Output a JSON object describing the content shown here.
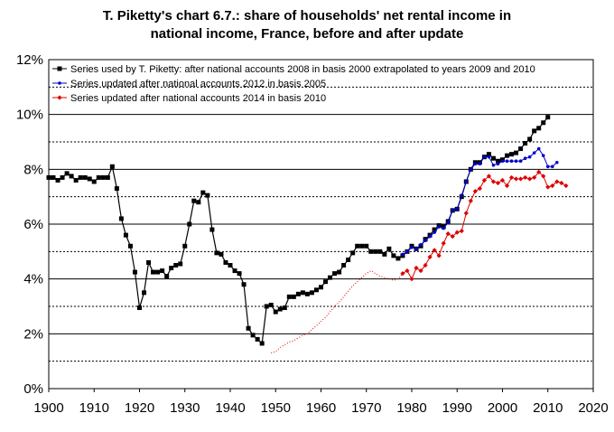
{
  "chart_data": {
    "type": "line",
    "title_line1": "T. Piketty's chart 6.7.: share of households' net rental income in",
    "title_line2": "national income, France, before and after update",
    "xlabel": "",
    "ylabel": "",
    "xlim": [
      1900,
      2020
    ],
    "ylim": [
      0,
      12
    ],
    "x_ticks": [
      "1900",
      "1910",
      "1920",
      "1930",
      "1940",
      "1950",
      "1960",
      "1970",
      "1980",
      "1990",
      "2000",
      "2010",
      "2020"
    ],
    "y_ticks": [
      "0%",
      "2%",
      "4%",
      "6%",
      "8%",
      "10%",
      "12%"
    ],
    "grid": "horizontal-dashed-and-solid",
    "legend_position": "top-right",
    "series": [
      {
        "name": "Series used by T. Piketty: after national accounts 2008 in basis 2000 extrapolated to years 2009 and 2010",
        "color": "#000000",
        "marker": "square",
        "x": [
          1900,
          1901,
          1902,
          1903,
          1904,
          1905,
          1906,
          1907,
          1908,
          1909,
          1910,
          1911,
          1912,
          1913,
          1914,
          1915,
          1916,
          1917,
          1918,
          1919,
          1920,
          1921,
          1922,
          1923,
          1924,
          1925,
          1926,
          1927,
          1928,
          1929,
          1930,
          1931,
          1932,
          1933,
          1934,
          1935,
          1936,
          1937,
          1938,
          1939,
          1940,
          1941,
          1942,
          1943,
          1944,
          1945,
          1946,
          1947,
          1948,
          1949,
          1950,
          1951,
          1952,
          1953,
          1954,
          1955,
          1956,
          1957,
          1958,
          1959,
          1960,
          1961,
          1962,
          1963,
          1964,
          1965,
          1966,
          1967,
          1968,
          1969,
          1970,
          1971,
          1972,
          1973,
          1974,
          1975,
          1976,
          1977,
          1978,
          1979,
          1980,
          1981,
          1982,
          1983,
          1984,
          1985,
          1986,
          1987,
          1988,
          1989,
          1990,
          1991,
          1992,
          1993,
          1994,
          1995,
          1996,
          1997,
          1998,
          1999,
          2000,
          2001,
          2002,
          2003,
          2004,
          2005,
          2006,
          2007,
          2008,
          2009,
          2010
        ],
        "y": [
          7.7,
          7.7,
          7.6,
          7.7,
          7.85,
          7.75,
          7.6,
          7.7,
          7.7,
          7.65,
          7.55,
          7.7,
          7.7,
          7.7,
          8.1,
          7.3,
          6.2,
          5.6,
          5.2,
          4.25,
          2.95,
          3.5,
          4.6,
          4.25,
          4.25,
          4.3,
          4.1,
          4.4,
          4.5,
          4.55,
          5.2,
          6.0,
          6.85,
          6.8,
          7.15,
          7.05,
          5.8,
          4.95,
          4.9,
          4.6,
          4.5,
          4.3,
          4.2,
          3.8,
          2.2,
          1.95,
          1.8,
          1.65,
          3.0,
          3.05,
          2.8,
          2.9,
          2.95,
          3.35,
          3.35,
          3.45,
          3.5,
          3.45,
          3.5,
          3.6,
          3.7,
          3.9,
          4.05,
          4.2,
          4.25,
          4.5,
          4.7,
          4.95,
          5.2,
          5.2,
          5.2,
          5.0,
          5.0,
          5.0,
          4.9,
          5.1,
          4.85,
          4.75,
          4.85,
          5.0,
          5.2,
          5.1,
          5.2,
          5.45,
          5.6,
          5.8,
          5.95,
          5.9,
          6.1,
          6.5,
          6.55,
          7.0,
          7.55,
          8.0,
          8.25,
          8.25,
          8.45,
          8.55,
          8.4,
          8.3,
          8.35,
          8.5,
          8.55,
          8.6,
          8.75,
          8.95,
          9.1,
          9.4,
          9.5,
          9.7,
          9.9
        ]
      },
      {
        "name": "Series updated after national accounts 2012 in basis 2005",
        "color": "#0000cc",
        "marker": "circle",
        "x": [
          1978,
          1979,
          1980,
          1981,
          1982,
          1983,
          1984,
          1985,
          1986,
          1987,
          1988,
          1989,
          1990,
          1991,
          1992,
          1993,
          1994,
          1995,
          1996,
          1997,
          1998,
          1999,
          2000,
          2001,
          2002,
          2003,
          2004,
          2005,
          2006,
          2007,
          2008,
          2009,
          2010,
          2011,
          2012
        ],
        "y": [
          4.9,
          5.0,
          5.15,
          5.1,
          5.25,
          5.4,
          5.55,
          5.7,
          5.9,
          5.85,
          6.05,
          6.5,
          6.55,
          7.05,
          7.55,
          8.0,
          8.2,
          8.2,
          8.45,
          8.45,
          8.15,
          8.2,
          8.3,
          8.3,
          8.3,
          8.3,
          8.3,
          8.4,
          8.45,
          8.6,
          8.75,
          8.5,
          8.1,
          8.1,
          8.25
        ]
      },
      {
        "name": "Series updated after national accounts 2014 in basis 2010",
        "color": "#dd0000",
        "marker": "diamond",
        "x": [
          1949,
          1950,
          1951,
          1952,
          1953,
          1954,
          1955,
          1956,
          1957,
          1958,
          1959,
          1960,
          1961,
          1962,
          1963,
          1964,
          1965,
          1966,
          1967,
          1968,
          1969,
          1970,
          1971,
          1972,
          1973,
          1974,
          1975,
          1976,
          1977,
          1978,
          1979,
          1980,
          1981,
          1982,
          1983,
          1984,
          1985,
          1986,
          1987,
          1988,
          1989,
          1990,
          1991,
          1992,
          1993,
          1994,
          1995,
          1996,
          1997,
          1998,
          1999,
          2000,
          2001,
          2002,
          2003,
          2004,
          2005,
          2006,
          2007,
          2008,
          2009,
          2010,
          2011,
          2012,
          2013,
          2014
        ],
        "y": [
          1.3,
          1.35,
          1.5,
          1.6,
          1.7,
          1.75,
          1.85,
          1.95,
          2.0,
          2.15,
          2.3,
          2.45,
          2.6,
          2.8,
          3.0,
          3.15,
          3.35,
          3.55,
          3.75,
          3.9,
          4.05,
          4.2,
          4.3,
          4.2,
          4.1,
          4.05,
          4.0,
          3.95,
          4.0,
          4.2,
          4.3,
          4.0,
          4.4,
          4.3,
          4.5,
          4.8,
          5.05,
          4.85,
          5.3,
          5.65,
          5.55,
          5.7,
          5.75,
          6.4,
          6.85,
          7.2,
          7.3,
          7.6,
          7.75,
          7.55,
          7.5,
          7.6,
          7.4,
          7.7,
          7.65,
          7.65,
          7.7,
          7.65,
          7.7,
          7.9,
          7.75,
          7.35,
          7.4,
          7.55,
          7.5,
          7.4
        ],
        "dotted_until": 1978
      }
    ]
  }
}
